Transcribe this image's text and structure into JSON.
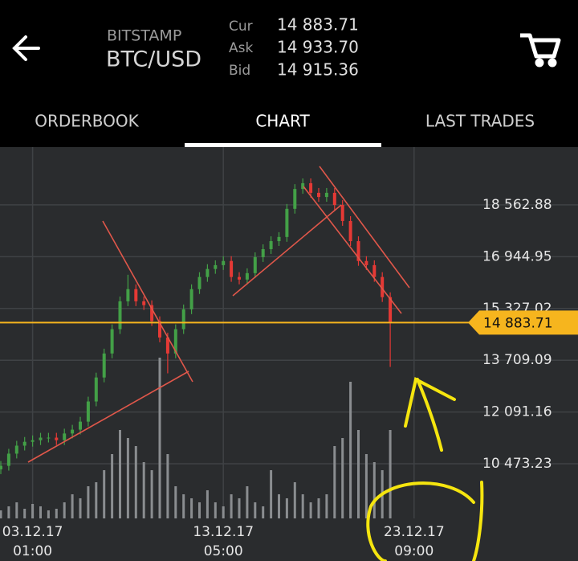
{
  "header": {
    "exchange": "BITSTAMP",
    "pair": "BTC/USD",
    "quotes": [
      {
        "label": "Cur",
        "value": "14 883.71"
      },
      {
        "label": "Ask",
        "value": "14 933.70"
      },
      {
        "label": "Bid",
        "value": "14 915.36"
      }
    ]
  },
  "tabs": [
    "ORDERBOOK",
    "CHART",
    "LAST TRADES"
  ],
  "chart_data": {
    "type": "candlestick",
    "categories": [
      null,
      null,
      null,
      null,
      "03.12.17 01:00",
      null,
      null,
      null,
      null,
      null,
      null,
      null,
      null,
      null,
      null,
      null,
      null,
      null,
      null,
      null,
      null,
      null,
      null,
      null,
      null,
      null,
      null,
      null,
      "13.12.17 05:00",
      null,
      null,
      null,
      null,
      null,
      null,
      null,
      null,
      null,
      null,
      null,
      null,
      null,
      null,
      null,
      null,
      null,
      null,
      null,
      null,
      null,
      null,
      null,
      "23.12.17 09:00",
      null
    ],
    "open": [
      10300,
      10410,
      10790,
      11040,
      11160,
      11210,
      11290,
      11290,
      11210,
      11420,
      11540,
      11790,
      12420,
      13170,
      13920,
      14680,
      15550,
      15930,
      15550,
      15430,
      14930,
      14420,
      13920,
      14680,
      15300,
      15930,
      16310,
      16560,
      16680,
      16810,
      16310,
      16230,
      16430,
      16930,
      17180,
      17430,
      17560,
      18440,
      19060,
      19240,
      18940,
      18810,
      18940,
      18560,
      18060,
      17430,
      16810,
      16680,
      16310,
      15680,
      null,
      null,
      null,
      null
    ],
    "high": [
      10560,
      10940,
      11190,
      11310,
      11360,
      11440,
      11440,
      11440,
      11570,
      11690,
      11940,
      12570,
      13320,
      14070,
      14830,
      15700,
      16380,
      16080,
      15700,
      15580,
      15080,
      14570,
      14830,
      15450,
      16080,
      16460,
      16710,
      16830,
      16960,
      16960,
      16460,
      16580,
      17080,
      17330,
      17580,
      17710,
      18590,
      19210,
      19390,
      19390,
      19090,
      19090,
      19090,
      18710,
      18210,
      17580,
      16960,
      16830,
      16460,
      15830,
      null,
      null,
      null,
      null
    ],
    "low": [
      10150,
      10260,
      10640,
      10890,
      11010,
      11060,
      11140,
      11060,
      11060,
      11270,
      11390,
      11640,
      12270,
      13020,
      13770,
      14530,
      15400,
      15400,
      15280,
      14780,
      14270,
      13300,
      13770,
      14530,
      15150,
      15780,
      16160,
      16410,
      16530,
      16160,
      16080,
      16080,
      16280,
      16780,
      17030,
      17280,
      17410,
      18290,
      18910,
      18790,
      18660,
      18660,
      18410,
      17910,
      17280,
      16660,
      16530,
      16160,
      15530,
      13500,
      null,
      null,
      null,
      null
    ],
    "close": [
      10410,
      10790,
      11040,
      11160,
      11210,
      11290,
      11290,
      11210,
      11420,
      11540,
      11790,
      12420,
      13170,
      13920,
      14680,
      15550,
      15930,
      15550,
      15430,
      14930,
      14420,
      13920,
      14680,
      15300,
      15930,
      16310,
      16560,
      16680,
      16810,
      16310,
      16230,
      16430,
      16930,
      17180,
      17430,
      17560,
      18440,
      19060,
      19240,
      18940,
      18810,
      18940,
      18560,
      18060,
      17430,
      16810,
      16680,
      16310,
      15680,
      14880,
      null,
      null,
      null,
      null
    ],
    "volume": [
      10,
      15,
      20,
      12,
      18,
      15,
      10,
      12,
      20,
      30,
      25,
      40,
      45,
      60,
      80,
      110,
      100,
      90,
      70,
      60,
      200,
      80,
      40,
      30,
      25,
      20,
      35,
      20,
      15,
      30,
      25,
      40,
      20,
      15,
      60,
      30,
      25,
      45,
      30,
      20,
      25,
      30,
      90,
      100,
      170,
      110,
      80,
      70,
      60,
      110,
      null,
      null,
      null,
      null
    ],
    "ylim": [
      8767,
      20369
    ],
    "yticks": [
      {
        "value": 10473.23,
        "label": "10 473.23"
      },
      {
        "value": 12091.16,
        "label": "12 091.16"
      },
      {
        "value": 13709.09,
        "label": "13 709.09"
      },
      {
        "value": 15327.02,
        "label": "15 327.02"
      },
      {
        "value": 16944.95,
        "label": "16 944.95"
      },
      {
        "value": 18562.88,
        "label": "18 562.88"
      }
    ],
    "last_price": {
      "value": 14883.71,
      "label": "14 883.71"
    },
    "up_color": "#43a047",
    "down_color": "#e53935",
    "volume_color": "#8a8d90",
    "grid": true
  }
}
